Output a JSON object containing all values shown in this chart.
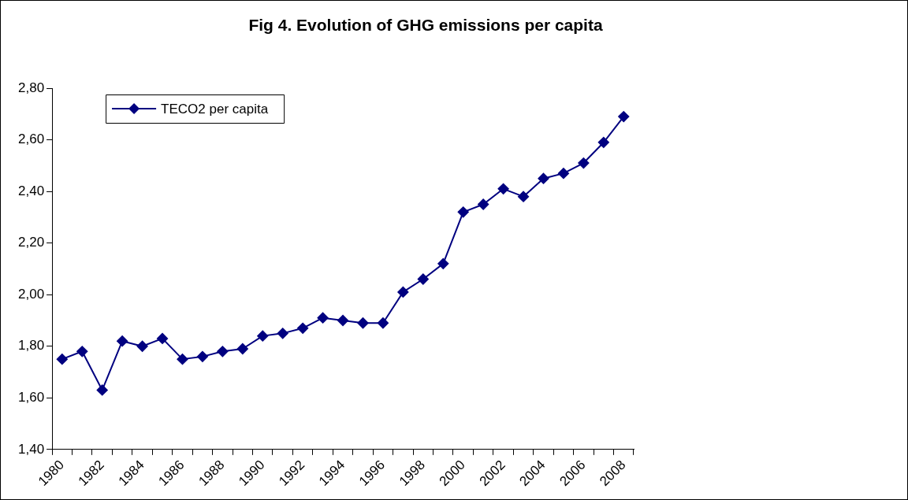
{
  "chart_data": {
    "type": "line",
    "title": "Fig 4. Evolution of GHG emissions per capita",
    "categories": [
      "1980",
      null,
      "1982",
      null,
      "1984",
      null,
      "1986",
      null,
      "1988",
      null,
      "1990",
      null,
      "1992",
      null,
      "1994",
      null,
      "1996",
      null,
      "1998",
      null,
      "2000",
      null,
      "2002",
      null,
      "2004",
      null,
      "2006",
      null,
      "2008"
    ],
    "series": [
      {
        "name": "TECO2 per capita",
        "color": "#000080",
        "values": [
          1.75,
          1.78,
          1.63,
          1.82,
          1.8,
          1.83,
          1.75,
          1.76,
          1.78,
          1.79,
          1.84,
          1.85,
          1.87,
          1.91,
          1.9,
          1.89,
          1.89,
          2.01,
          2.06,
          2.12,
          2.32,
          2.35,
          2.41,
          2.38,
          2.45,
          2.47,
          2.51,
          2.59,
          2.69
        ]
      }
    ],
    "ylim": [
      1.4,
      2.8
    ],
    "yticks": [
      {
        "value": 1.4,
        "label": "1,40"
      },
      {
        "value": 1.6,
        "label": "1,60"
      },
      {
        "value": 1.8,
        "label": "1,80"
      },
      {
        "value": 2.0,
        "label": "2,00"
      },
      {
        "value": 2.2,
        "label": "2,20"
      },
      {
        "value": 2.4,
        "label": "2,40"
      },
      {
        "value": 2.6,
        "label": "2,60"
      },
      {
        "value": 2.8,
        "label": "2,80"
      }
    ],
    "grid": false,
    "legend": "top left",
    "marker": "diamond",
    "line_style": "solid"
  }
}
